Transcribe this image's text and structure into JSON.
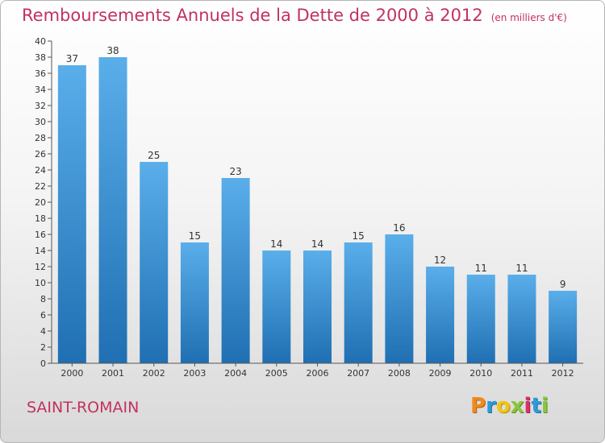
{
  "title": "Remboursements Annuels de la Dette de 2000 à 2012",
  "unit_note": "(en milliers d'€)",
  "town": "SAINT-ROMAIN",
  "brand": "Proxiti",
  "colors": {
    "title": "#c2325e",
    "bar_top": "#5aaeea",
    "bar_bottom": "#1f6fb2"
  },
  "chart_data": {
    "type": "bar",
    "categories": [
      "2000",
      "2001",
      "2002",
      "2003",
      "2004",
      "2005",
      "2006",
      "2007",
      "2008",
      "2009",
      "2010",
      "2011",
      "2012"
    ],
    "values": [
      37,
      38,
      25,
      15,
      23,
      14,
      14,
      15,
      16,
      12,
      11,
      11,
      9
    ],
    "ylim": [
      0,
      40
    ],
    "yticks": [
      0,
      2,
      4,
      6,
      8,
      10,
      12,
      14,
      16,
      18,
      20,
      22,
      24,
      26,
      28,
      30,
      32,
      34,
      36,
      38,
      40
    ],
    "xlabel": "",
    "ylabel": "",
    "grid": false,
    "data_labels": true
  }
}
